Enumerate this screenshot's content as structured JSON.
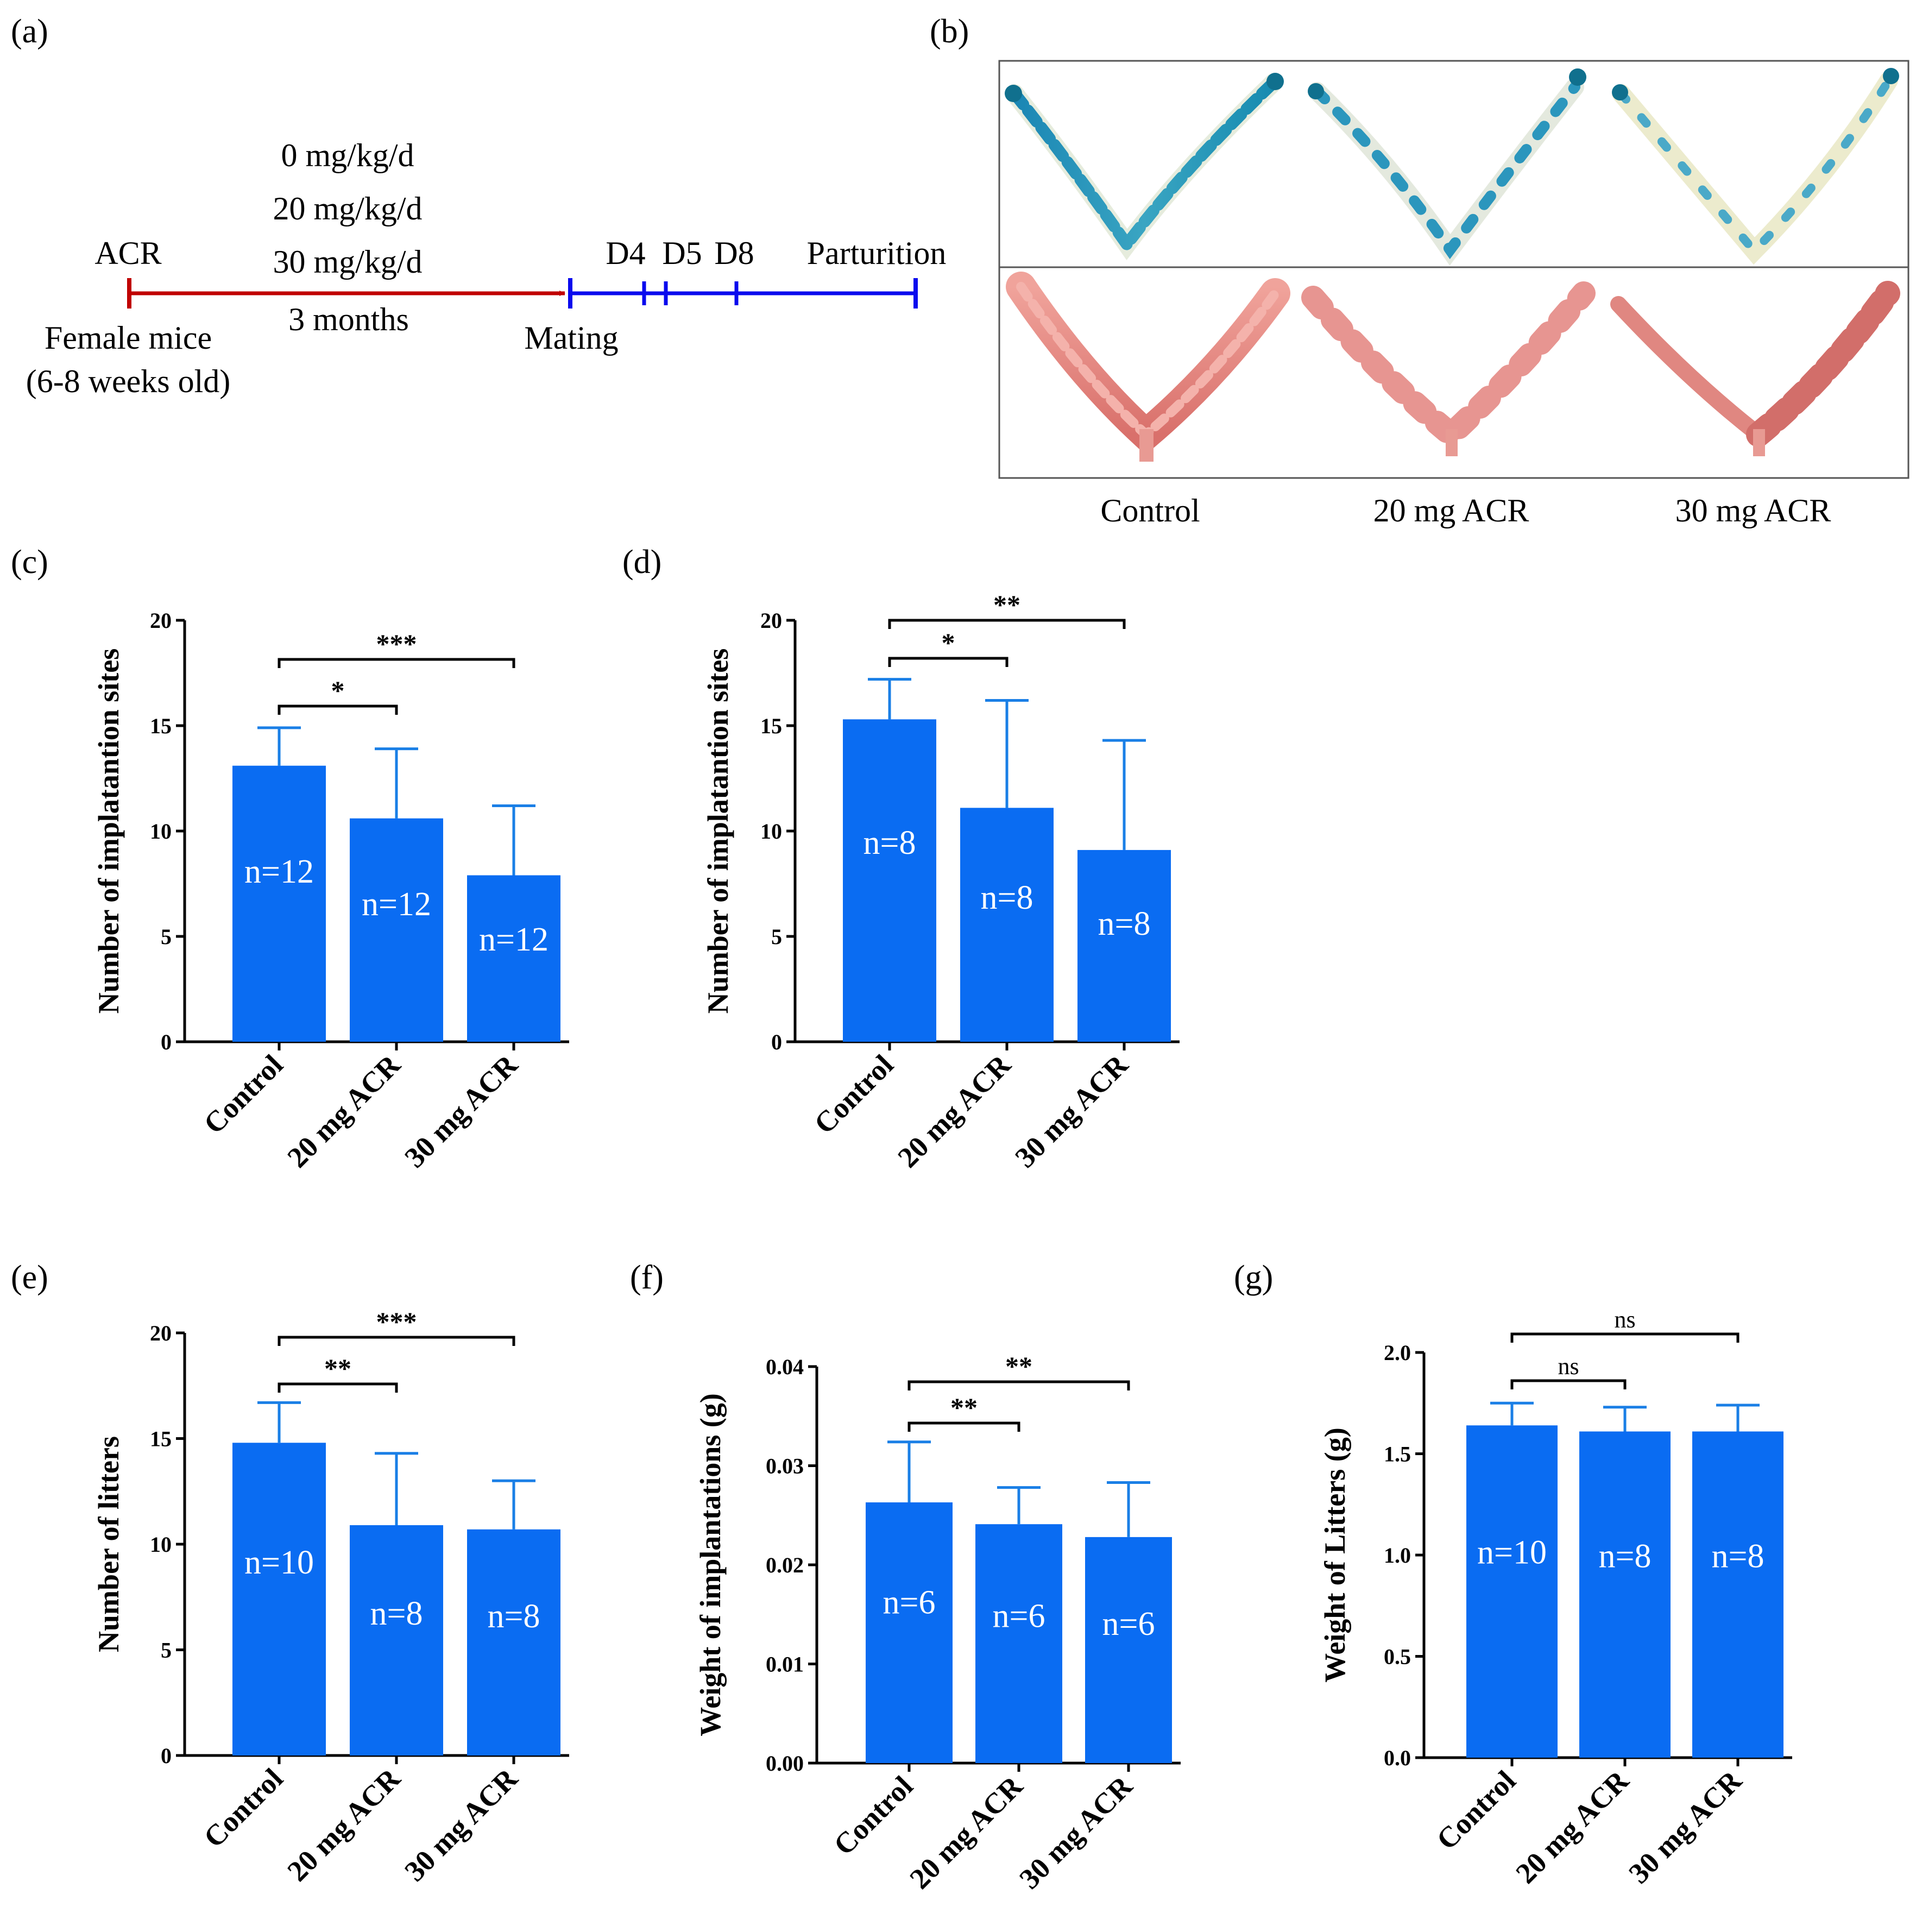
{
  "panel_labels": [
    "(a)",
    "(b)",
    "(c)",
    "(d)",
    "(e)",
    "(f)",
    "(g)"
  ],
  "timeline": {
    "start_label": "ACR",
    "doses": [
      "0 mg/kg/d",
      "20 mg/kg/d",
      "30 mg/kg/d"
    ],
    "duration": "3 months",
    "subject_line1": "Female mice",
    "subject_line2": "(6-8 weeks old)",
    "mating": "Mating",
    "days": [
      "D4",
      "D5",
      "D8"
    ],
    "end_label": "Parturition",
    "colors": {
      "treatment": "#c00000",
      "pregnancy": "#0a0aee"
    }
  },
  "photo_panel": {
    "group_labels": [
      "Control",
      "20 mg ACR",
      "30 mg ACR"
    ],
    "colors": {
      "stained": "#1f8fb0",
      "uterus": "#e48a85"
    }
  },
  "colors": {
    "bar": "#0a6cf2",
    "error": "#1a7fe6",
    "axis": "#000000"
  },
  "chart_data": [
    {
      "id": "c",
      "type": "bar",
      "categories": [
        "Control",
        "20 mg ACR",
        "30 mg ACR"
      ],
      "values": [
        13.1,
        10.6,
        7.9
      ],
      "errors": [
        1.8,
        3.3,
        3.3
      ],
      "n_labels": [
        "n=12",
        "n=12",
        "n=12"
      ],
      "ylabel": "Number of implatantion sites",
      "ylim": [
        0,
        20
      ],
      "yticks": [
        "0",
        "5",
        "10",
        "15",
        "20"
      ],
      "significance": [
        {
          "from": 0,
          "to": 1,
          "label": "*"
        },
        {
          "from": 0,
          "to": 2,
          "label": "***"
        }
      ]
    },
    {
      "id": "d",
      "type": "bar",
      "categories": [
        "Control",
        "20 mg ACR",
        "30 mg ACR"
      ],
      "values": [
        15.3,
        11.1,
        9.1
      ],
      "errors": [
        1.9,
        5.1,
        5.2
      ],
      "n_labels": [
        "n=8",
        "n=8",
        "n=8"
      ],
      "ylabel": "Number of implatantion sites",
      "ylim": [
        0,
        20
      ],
      "yticks": [
        "0",
        "5",
        "10",
        "15",
        "20"
      ],
      "significance": [
        {
          "from": 0,
          "to": 1,
          "label": "*"
        },
        {
          "from": 0,
          "to": 2,
          "label": "**"
        }
      ]
    },
    {
      "id": "e",
      "type": "bar",
      "categories": [
        "Control",
        "20 mg ACR",
        "30 mg ACR"
      ],
      "values": [
        14.8,
        10.9,
        10.7
      ],
      "errors": [
        1.9,
        3.4,
        2.3
      ],
      "n_labels": [
        "n=10",
        "n=8",
        "n=8"
      ],
      "ylabel": "Number of litters",
      "ylim": [
        0,
        20
      ],
      "yticks": [
        "0",
        "5",
        "10",
        "15",
        "20"
      ],
      "significance": [
        {
          "from": 0,
          "to": 1,
          "label": "**"
        },
        {
          "from": 0,
          "to": 2,
          "label": "***"
        }
      ]
    },
    {
      "id": "f",
      "type": "bar",
      "categories": [
        "Control",
        "20 mg ACR",
        "30 mg ACR"
      ],
      "values": [
        0.0263,
        0.0241,
        0.0228
      ],
      "errors": [
        0.0061,
        0.0037,
        0.0055
      ],
      "n_labels": [
        "n=6",
        "n=6",
        "n=6"
      ],
      "ylabel": "Weight of implantations (g)",
      "ylim": [
        0,
        0.04
      ],
      "yticks": [
        "0.00",
        "0.01",
        "0.02",
        "0.03",
        "0.04"
      ],
      "significance": [
        {
          "from": 0,
          "to": 1,
          "label": "**"
        },
        {
          "from": 0,
          "to": 2,
          "label": "**"
        }
      ]
    },
    {
      "id": "g",
      "type": "bar",
      "categories": [
        "Control",
        "20 mg ACR",
        "30 mg ACR"
      ],
      "values": [
        1.64,
        1.61,
        1.61
      ],
      "errors": [
        0.11,
        0.12,
        0.13
      ],
      "n_labels": [
        "n=10",
        "n=8",
        "n=8"
      ],
      "ylabel": "Weight of Litters (g)",
      "ylim": [
        0,
        2.0
      ],
      "yticks": [
        "0.0",
        "0.5",
        "1.0",
        "1.5",
        "2.0"
      ],
      "significance": [
        {
          "from": 0,
          "to": 1,
          "label": "ns"
        },
        {
          "from": 0,
          "to": 2,
          "label": "ns"
        }
      ]
    }
  ]
}
